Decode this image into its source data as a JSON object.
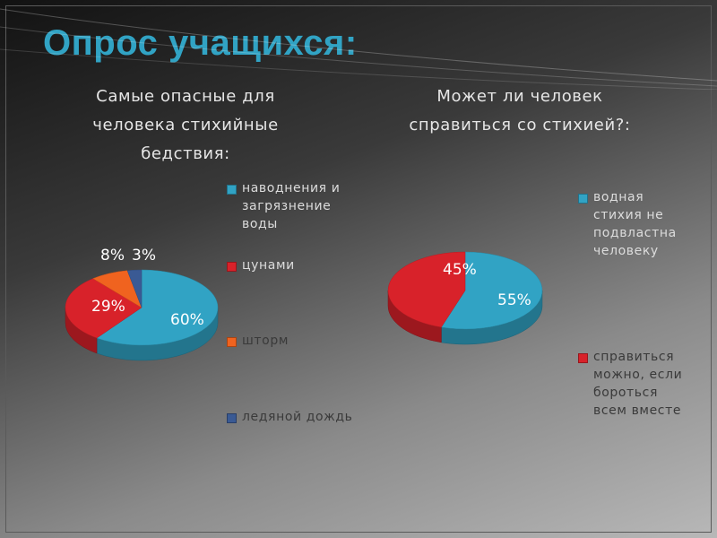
{
  "slide": {
    "title": "Опрос учащихся:"
  },
  "chart_data": [
    {
      "type": "pie",
      "title": "Самые опасные для человека стихийные бедствия:",
      "title_lines": [
        "Самые опасные для",
        "человека стихийные",
        "бедствия:"
      ],
      "categories": [
        "наводнения и загрязнение воды",
        "цунами",
        "шторм",
        "ледяной дождь"
      ],
      "values": [
        60,
        29,
        8,
        3
      ],
      "data_labels": [
        "60%",
        "29%",
        "8%",
        "3%"
      ],
      "colors": [
        "#31a3c4",
        "#d8222a",
        "#f0631f",
        "#3a5a94"
      ],
      "legend_position": "right",
      "legend_lines": [
        [
          "наводнения и",
          "загрязнение",
          "воды"
        ],
        [
          "цунами"
        ],
        [
          "шторм"
        ],
        [
          "ледяной дождь"
        ]
      ]
    },
    {
      "type": "pie",
      "title": "Может ли человек справиться со стихией?:",
      "title_lines": [
        "Может ли человек",
        "справиться со стихией?:"
      ],
      "categories": [
        "водная стихия не подвластна человеку",
        "справиться можно, если бороться всем вместе"
      ],
      "values": [
        55,
        45
      ],
      "data_labels": [
        "55%",
        "45%"
      ],
      "colors": [
        "#31a3c4",
        "#d8222a"
      ],
      "legend_position": "right",
      "legend_lines": [
        [
          "водная",
          "стихия не",
          "подвластна",
          "человеку"
        ],
        [
          "справиться",
          "можно, если",
          "бороться",
          "всем вместе"
        ]
      ]
    }
  ]
}
